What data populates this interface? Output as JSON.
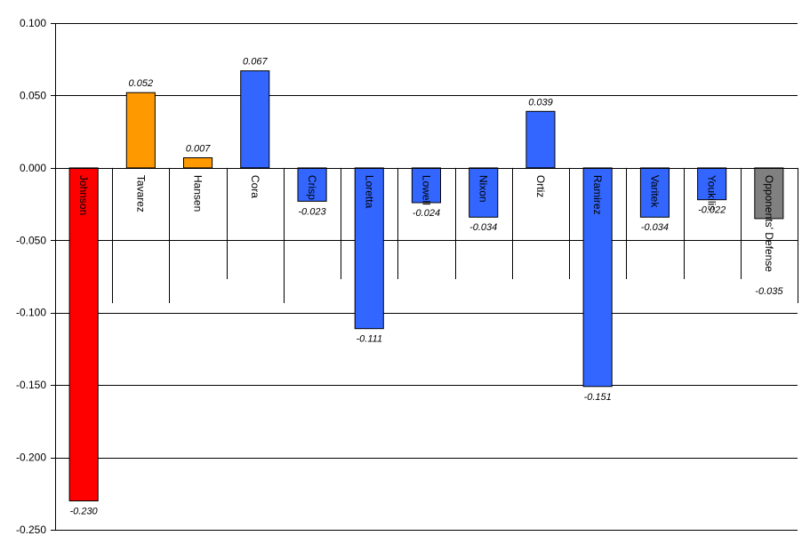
{
  "chart_data": {
    "type": "bar",
    "categories": [
      "Johnson",
      "Tavarez",
      "Hansen",
      "Cora",
      "Crisp",
      "Loretta",
      "Lowell",
      "Nixon",
      "Ortiz",
      "Ramirez",
      "Varitek",
      "Youkilis",
      "Opponents' Defense"
    ],
    "values": [
      -0.23,
      0.052,
      0.007,
      0.067,
      -0.023,
      -0.111,
      -0.024,
      -0.034,
      0.039,
      -0.151,
      -0.034,
      -0.022,
      -0.035
    ],
    "data_labels": [
      "-0.230",
      "0.052",
      "0.007",
      "0.067",
      "-0.023",
      "-0.111",
      "-0.024",
      "-0.034",
      "0.039",
      "-0.151",
      "-0.034",
      "-0.022",
      "-0.035"
    ],
    "bar_colors": [
      "#ff0000",
      "#ff9900",
      "#ff9900",
      "#3366ff",
      "#3366ff",
      "#3366ff",
      "#3366ff",
      "#3366ff",
      "#3366ff",
      "#3366ff",
      "#3366ff",
      "#3366ff",
      "#808080"
    ],
    "yticks": [
      "0.100",
      "0.050",
      "0.000",
      "-0.050",
      "-0.100",
      "-0.150",
      "-0.200",
      "-0.250"
    ],
    "ytick_values": [
      0.1,
      0.05,
      0,
      -0.05,
      -0.1,
      -0.15,
      -0.2,
      -0.25
    ],
    "ylim": [
      -0.25,
      0.1
    ],
    "title": "",
    "xlabel": "",
    "ylabel": "",
    "grid": true,
    "legend": "none"
  }
}
